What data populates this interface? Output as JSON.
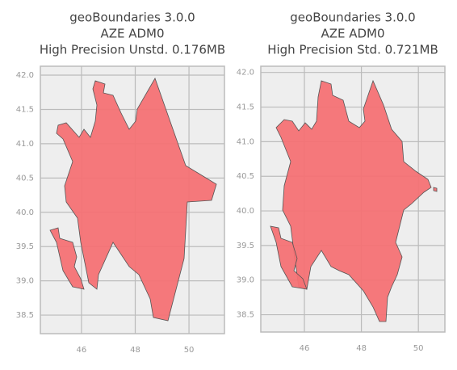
{
  "chart_data": [
    {
      "type": "map",
      "title": [
        "geoBoundaries 3.0.0",
        "AZE ADM0",
        "High Precision Unstd. 0.176MB"
      ],
      "xlim": [
        44.47,
        51.32
      ],
      "ylim": [
        38.23,
        42.13
      ],
      "xticks": [
        46,
        48,
        50
      ],
      "yticks": [
        {
          "value": 38.5,
          "label": "38.5"
        },
        {
          "value": 39,
          "label": "39.0"
        },
        {
          "value": 39.5,
          "label": "39.5"
        },
        {
          "value": 40,
          "label": "40.0"
        },
        {
          "value": 40.5,
          "label": "40.5"
        },
        {
          "value": 41,
          "label": "41.0"
        },
        {
          "value": 41.5,
          "label": "41.5"
        },
        {
          "value": 42,
          "label": "42.0"
        }
      ],
      "grid": true,
      "color": "#f47174"
    },
    {
      "type": "map",
      "title": [
        "geoBoundaries 3.0.0",
        "AZE ADM0",
        "High Precision Std. 0.721MB"
      ],
      "xlim": [
        44.47,
        50.93
      ],
      "ylim": [
        38.25,
        42.09
      ],
      "xticks": [
        46,
        48,
        50
      ],
      "yticks": [
        {
          "value": 38.5,
          "label": "38.5"
        },
        {
          "value": 39,
          "label": "39.0"
        },
        {
          "value": 39.5,
          "label": "39.5"
        },
        {
          "value": 40,
          "label": "40.0"
        },
        {
          "value": 40.5,
          "label": "40.5"
        },
        {
          "value": 41,
          "label": "41.0"
        },
        {
          "value": 41.5,
          "label": "41.5"
        },
        {
          "value": 42,
          "label": "42.0"
        }
      ],
      "grid": true,
      "color": "#f47174"
    }
  ]
}
